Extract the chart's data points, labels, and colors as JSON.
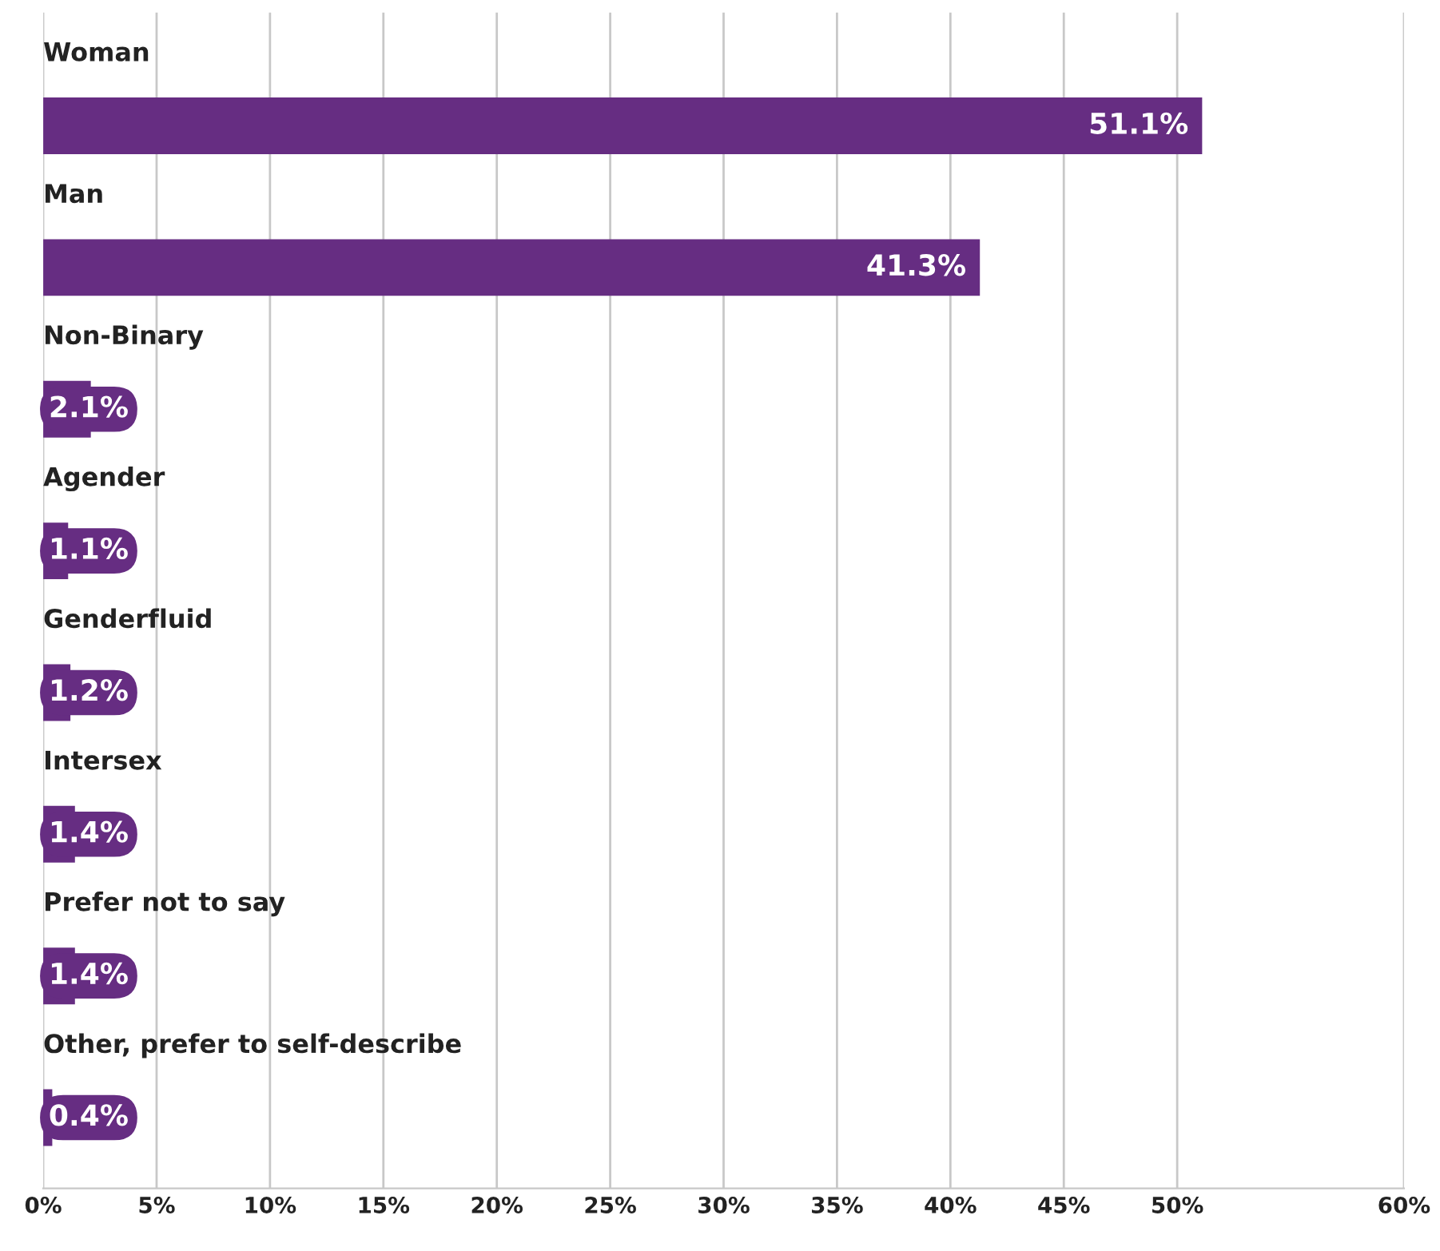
{
  "chart_data": {
    "type": "bar",
    "orientation": "horizontal",
    "categories": [
      "Woman",
      "Man",
      "Non-Binary",
      "Agender",
      "Genderfluid",
      "Intersex",
      "Prefer not to say",
      "Other, prefer to self-describe"
    ],
    "values": [
      51.1,
      41.3,
      2.1,
      1.1,
      1.2,
      1.4,
      1.4,
      0.4
    ],
    "value_labels": [
      "51.1%",
      "41.3%",
      "2.1%",
      "1.1%",
      "1.2%",
      "1.4%",
      "1.4%",
      "0.4%"
    ],
    "color": "#662d82",
    "xlim": [
      0,
      60
    ],
    "xticks": [
      {
        "value": 0,
        "label": "0%"
      },
      {
        "value": 5,
        "label": "5%"
      },
      {
        "value": 10,
        "label": "10%"
      },
      {
        "value": 15,
        "label": "15%"
      },
      {
        "value": 20,
        "label": "20%"
      },
      {
        "value": 25,
        "label": "25%"
      },
      {
        "value": 30,
        "label": "30%"
      },
      {
        "value": 35,
        "label": "35%"
      },
      {
        "value": 40,
        "label": "40%"
      },
      {
        "value": 45,
        "label": "45%"
      },
      {
        "value": 50,
        "label": "50%"
      },
      {
        "value": 60,
        "label": "60%"
      }
    ],
    "grid": "x"
  }
}
